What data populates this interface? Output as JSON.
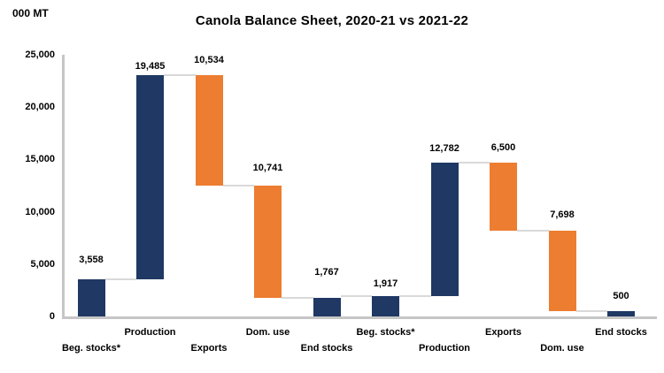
{
  "chart_data": {
    "type": "bar",
    "subtype": "waterfall",
    "title": "Canola Balance Sheet, 2020-21 vs 2021-22",
    "ylabel": "000 MT",
    "xlabel": "",
    "ylim": [
      0,
      25000
    ],
    "yticks": [
      0,
      5000,
      10000,
      15000,
      20000,
      25000
    ],
    "ytick_labels": [
      "0",
      "5,000",
      "10,000",
      "15,000",
      "20,000",
      "25,000"
    ],
    "grid": false,
    "legend": null,
    "colors": {
      "navy": "#1f3864",
      "orange": "#ed7d31",
      "connector": "#d9d9d9",
      "axis": "#c6c6c6",
      "text": "#000000"
    },
    "groups": [
      "2020-21",
      "2021-22"
    ],
    "bars": [
      {
        "category": "Beg. stocks*",
        "group": "2020-21",
        "value": 3558,
        "label": "3,558",
        "from": 0,
        "to": 3558,
        "color_key": "navy",
        "label_row": "lower",
        "label_dy": -12
      },
      {
        "category": "Production",
        "group": "2020-21",
        "value": 19485,
        "label": "19,485",
        "from": 3558,
        "to": 23043,
        "color_key": "navy",
        "label_row": "upper",
        "label_dy": 0
      },
      {
        "category": "Exports",
        "group": "2020-21",
        "value": 10534,
        "label": "10,534",
        "from": 23043,
        "to": 12509,
        "color_key": "orange",
        "label_row": "lower",
        "label_dy": -7
      },
      {
        "category": "Dom. use",
        "group": "2020-21",
        "value": 10741,
        "label": "10,741",
        "from": 12509,
        "to": 1768,
        "color_key": "orange",
        "label_row": "upper",
        "label_dy": -10
      },
      {
        "category": "End stocks",
        "group": "2020-21",
        "value": 1767,
        "label": "1,767",
        "from": 1767,
        "to": 0,
        "color_key": "navy",
        "label_row": "lower",
        "label_dy": -19
      },
      {
        "category": "Beg. stocks*",
        "group": "2021-22",
        "value": 1917,
        "label": "1,917",
        "from": 0,
        "to": 1917,
        "color_key": "navy",
        "label_row": "upper",
        "label_dy": -4
      },
      {
        "category": "Production",
        "group": "2021-22",
        "value": 12782,
        "label": "12,782",
        "from": 1917,
        "to": 14699,
        "color_key": "navy",
        "label_row": "lower",
        "label_dy": -6
      },
      {
        "category": "Exports",
        "group": "2021-22",
        "value": 6500,
        "label": "6,500",
        "from": 14699,
        "to": 8199,
        "color_key": "orange",
        "label_row": "upper",
        "label_dy": -7
      },
      {
        "category": "Dom. use",
        "group": "2021-22",
        "value": 7698,
        "label": "7,698",
        "from": 8199,
        "to": 501,
        "color_key": "orange",
        "label_row": "lower",
        "label_dy": -8
      },
      {
        "category": "End stocks",
        "group": "2021-22",
        "value": 500,
        "label": "500",
        "from": 500,
        "to": 0,
        "color_key": "navy",
        "label_row": "upper",
        "label_dy": -7
      }
    ],
    "connectors": [
      {
        "between": [
          0,
          1
        ],
        "value": 3558
      },
      {
        "between": [
          1,
          2
        ],
        "value": 23043
      },
      {
        "between": [
          2,
          3
        ],
        "value": 12509
      },
      {
        "between": [
          3,
          4
        ],
        "value": 1767
      },
      {
        "between": [
          4,
          5
        ],
        "value": 1917
      },
      {
        "between": [
          5,
          6
        ],
        "value": 1917
      },
      {
        "between": [
          6,
          7
        ],
        "value": 14699
      },
      {
        "between": [
          7,
          8
        ],
        "value": 8199
      },
      {
        "between": [
          8,
          9
        ],
        "value": 500
      }
    ]
  }
}
